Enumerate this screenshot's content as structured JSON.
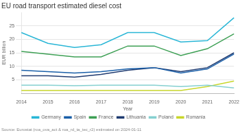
{
  "chart_data": {
    "type": "line",
    "title": "EU road transport estimated diesel cost",
    "x_label": "Year",
    "y_label": "EUR billion",
    "annotations": [
      "Source: Eurostat (roa_ova_act & roa_rd_ta_tec_r2) estimated on 2024-01-11"
    ],
    "categories": [
      "2014",
      "2015",
      "2016",
      "2017",
      "2018",
      "2019",
      "2020",
      "2021",
      "2022"
    ],
    "series": [
      {
        "name": "Germany",
        "color": "#29b6d6",
        "values": [
          22.5,
          18.5,
          17.0,
          18.0,
          22.5,
          22.5,
          19.0,
          19.5,
          28.0
        ]
      },
      {
        "name": "Spain",
        "color": "#1a5fa8",
        "values": [
          8.5,
          8.0,
          7.5,
          8.0,
          9.0,
          9.5,
          7.5,
          9.0,
          14.5
        ]
      },
      {
        "name": "France",
        "color": "#3ea055",
        "values": [
          15.5,
          14.5,
          13.5,
          13.5,
          17.5,
          17.5,
          14.0,
          16.5,
          22.0
        ]
      },
      {
        "name": "Lithuania",
        "color": "#1e3a70",
        "values": [
          6.5,
          6.5,
          6.0,
          7.0,
          8.5,
          9.5,
          8.0,
          9.5,
          15.0
        ]
      },
      {
        "name": "Poland",
        "color": "#85d0d0",
        "values": [
          3.0,
          3.0,
          2.8,
          3.0,
          3.0,
          3.0,
          2.5,
          3.0,
          2.0
        ]
      },
      {
        "name": "Romania",
        "color": "#c8d62b",
        "values": [
          1.0,
          1.0,
          1.0,
          1.0,
          1.0,
          1.0,
          1.0,
          2.5,
          4.5
        ]
      }
    ],
    "ylim": [
      0,
      30
    ],
    "yticks": [
      5,
      10,
      15,
      20,
      25
    ],
    "grid": true,
    "legend": "bottom"
  }
}
